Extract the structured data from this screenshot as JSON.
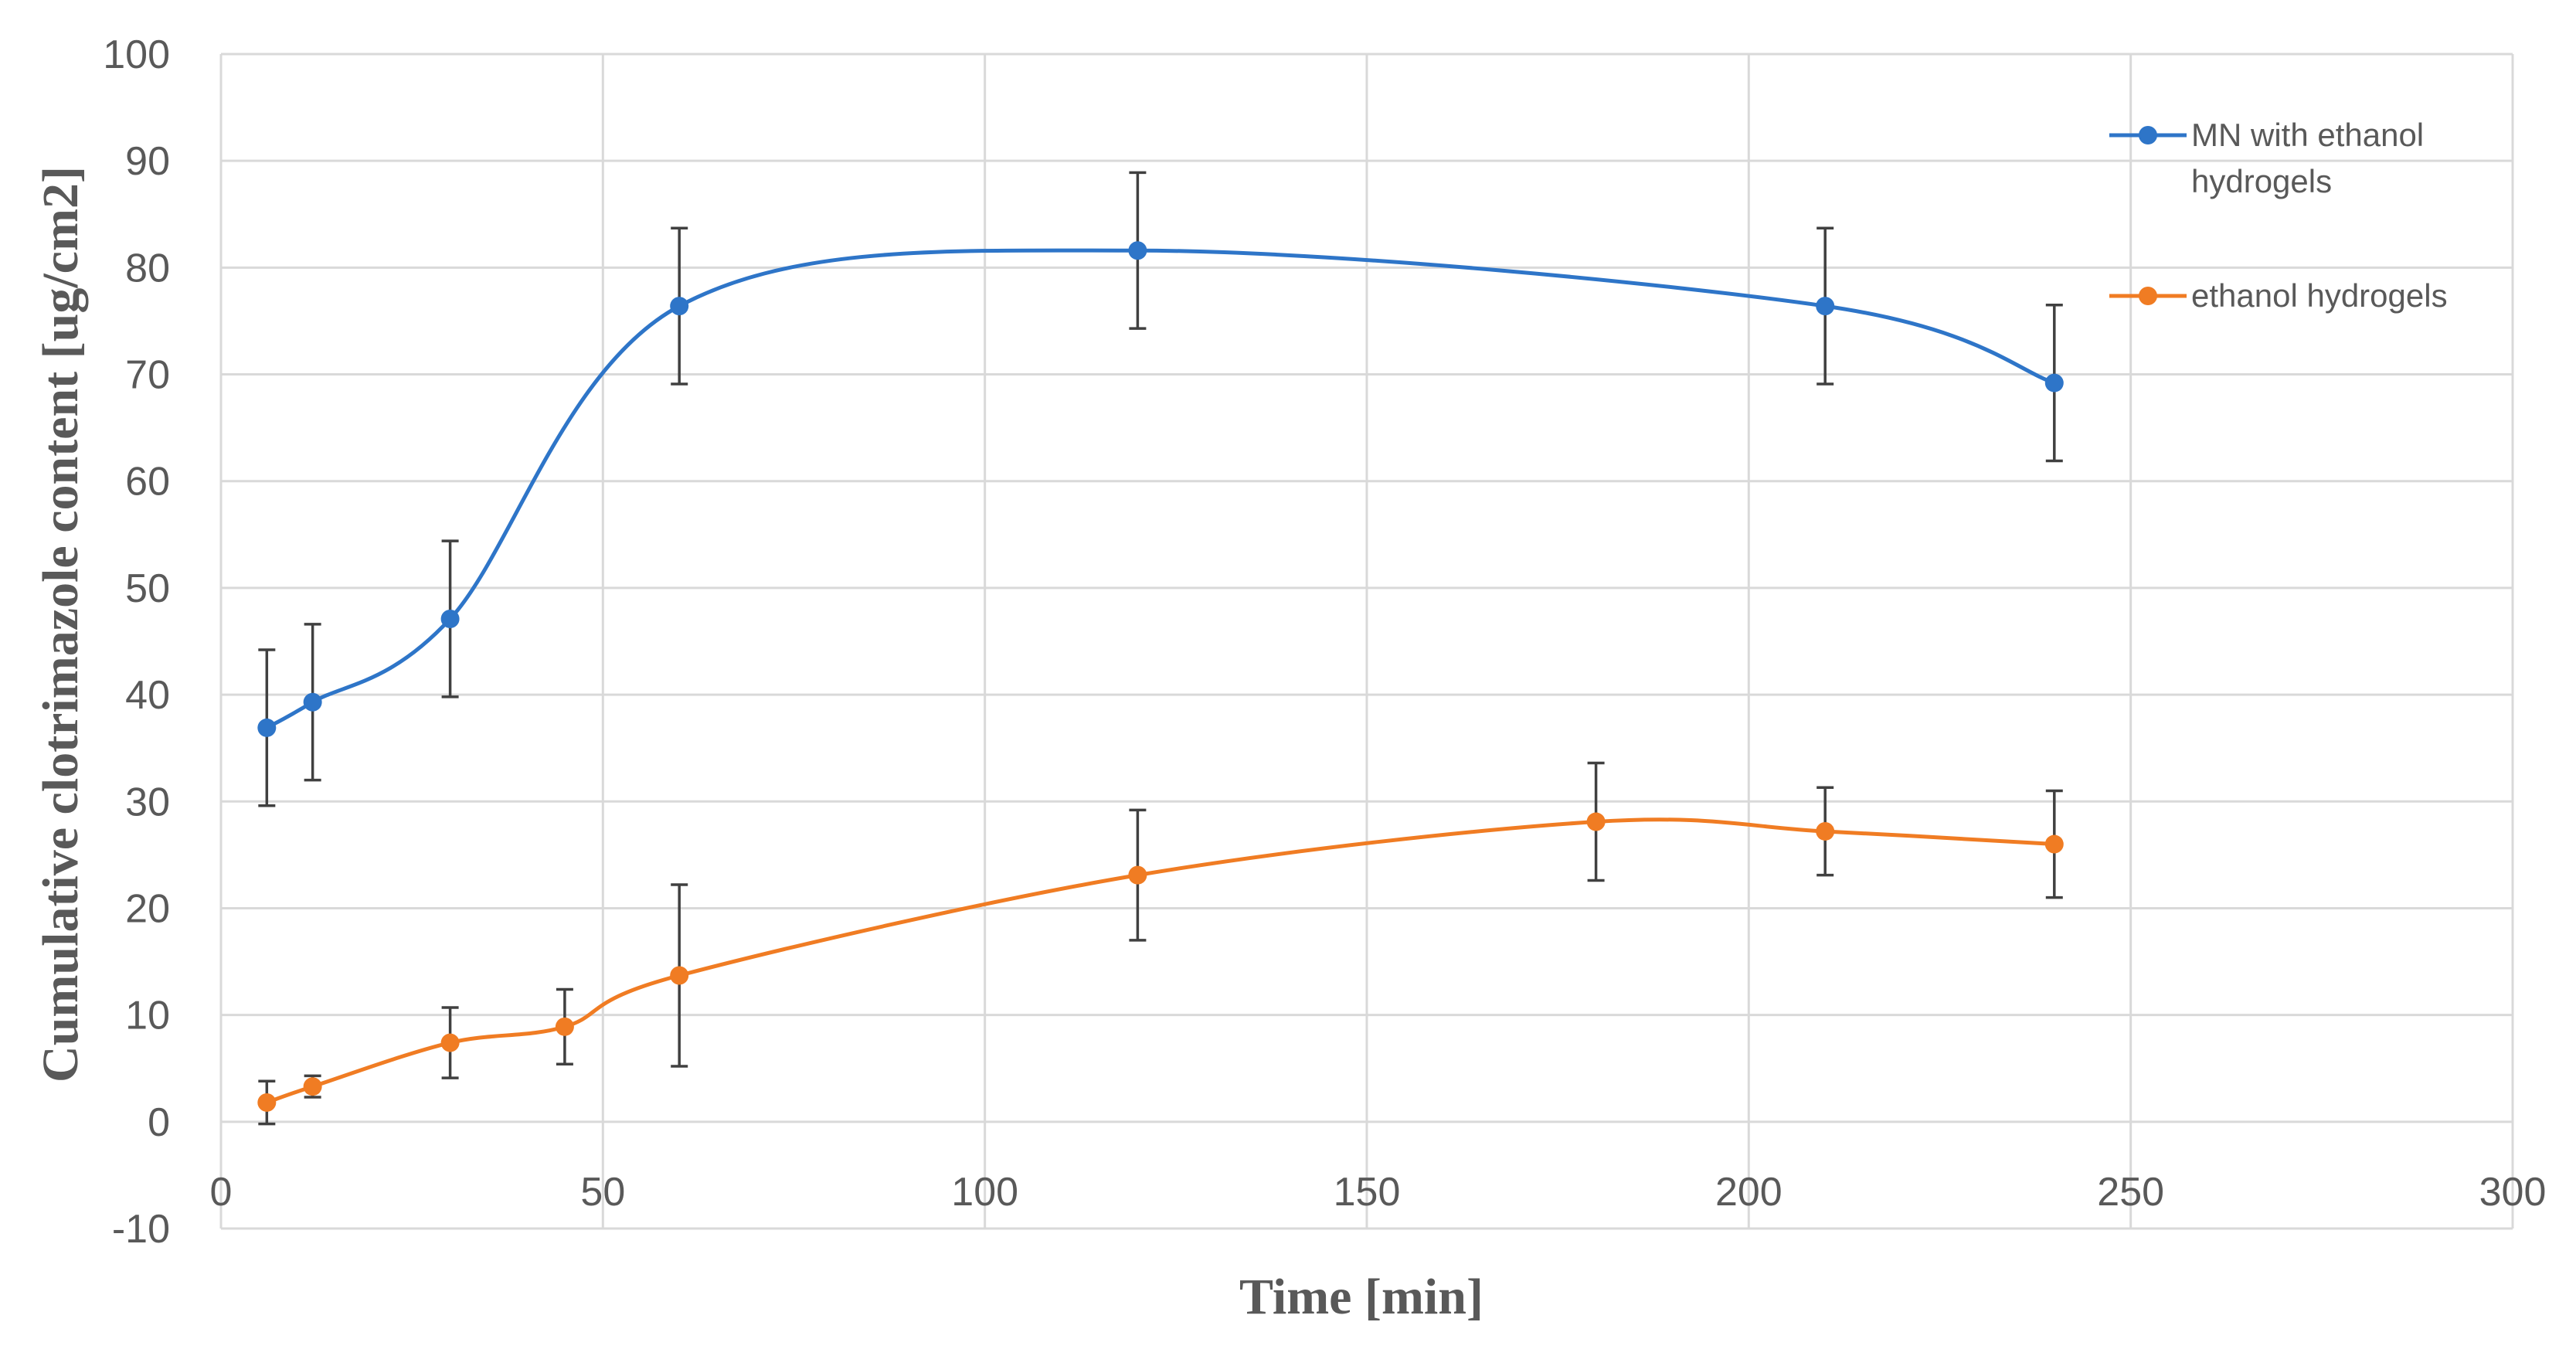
{
  "chart_data": {
    "type": "line",
    "title": "",
    "xlabel": "Time [min]",
    "ylabel": "Cumulative clotrimazole content [ug/cm2]",
    "xlim": [
      0,
      300
    ],
    "ylim": [
      -10,
      100
    ],
    "xticks": [
      0,
      50,
      100,
      150,
      200,
      250,
      300
    ],
    "yticks": [
      -10,
      0,
      10,
      20,
      30,
      40,
      50,
      60,
      70,
      80,
      90,
      100
    ],
    "xtick_labels": [
      "0",
      "50",
      "100",
      "150",
      "200",
      "250",
      "300"
    ],
    "ytick_labels": [
      "-10",
      "0",
      "10",
      "20",
      "30",
      "40",
      "50",
      "60",
      "70",
      "80",
      "90",
      "100"
    ],
    "grid": true,
    "smooth": true,
    "legend_position": "right",
    "series": [
      {
        "name": "MN with ethanol hydrogels",
        "legend_lines": [
          "MN with ethanol",
          "hydrogels"
        ],
        "color": "#4472c4",
        "line_color": "#2e75c8",
        "x": [
          6,
          12,
          30,
          60,
          120,
          210,
          240
        ],
        "y": [
          36.9,
          39.3,
          47.1,
          76.4,
          81.6,
          76.4,
          69.2
        ],
        "err": [
          7.3,
          7.3,
          7.3,
          7.3,
          7.3,
          7.3,
          7.3
        ]
      },
      {
        "name": "ethanol hydrogels",
        "legend_lines": [
          "ethanol hydrogels"
        ],
        "color": "#ed7d31",
        "line_color": "#f07c23",
        "x": [
          6,
          12,
          30,
          45,
          60,
          120,
          180,
          210,
          240
        ],
        "y": [
          1.8,
          3.3,
          7.4,
          8.9,
          13.7,
          23.1,
          28.1,
          27.2,
          26.0
        ],
        "err": [
          2.0,
          1.0,
          3.3,
          3.5,
          8.5,
          6.1,
          5.5,
          4.1,
          5.0
        ]
      }
    ]
  }
}
